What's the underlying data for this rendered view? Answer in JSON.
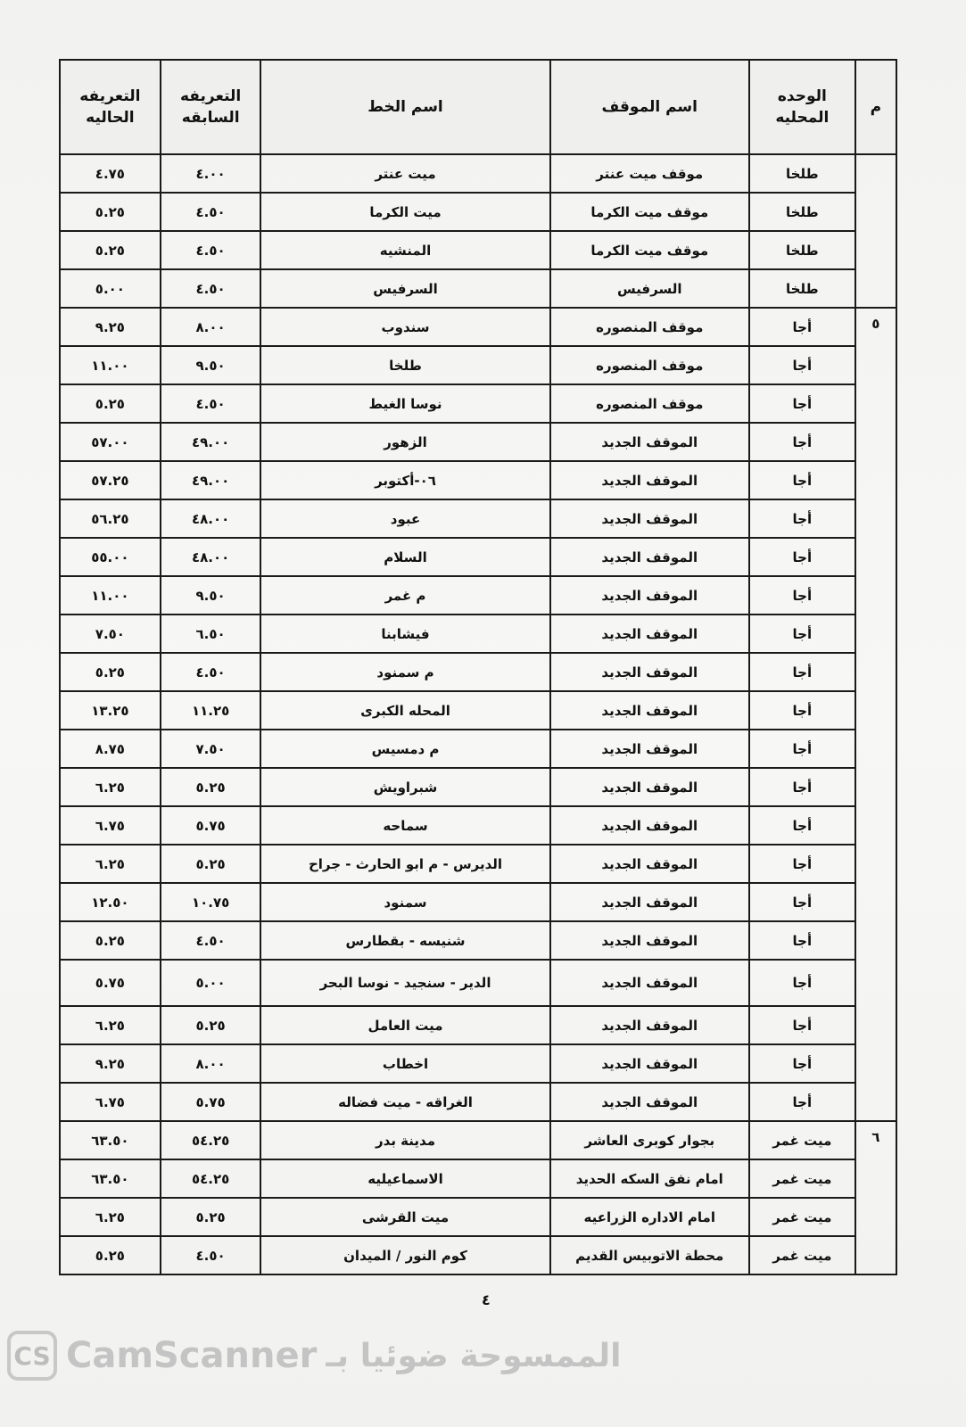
{
  "table": {
    "headers": {
      "m": "م",
      "unit": "الوحده المحليه",
      "stop": "اسم الموقف",
      "line": "اسم الخط",
      "previous_fare": "التعريفه السابقه",
      "current_fare": "التعريفه الحاليه"
    },
    "groups": [
      {
        "m": "",
        "rows": [
          {
            "unit": "طلخا",
            "stop": "موقف ميت عنتر",
            "line": "ميت عنتر",
            "prev": "٤.٠٠",
            "cur": "٤.٧٥"
          },
          {
            "unit": "طلخا",
            "stop": "موقف ميت الكرما",
            "line": "ميت الكرما",
            "prev": "٤.٥٠",
            "cur": "٥.٢٥"
          },
          {
            "unit": "طلخا",
            "stop": "موقف ميت الكرما",
            "line": "المنشيه",
            "prev": "٤.٥٠",
            "cur": "٥.٢٥"
          },
          {
            "unit": "طلخا",
            "stop": "السرفيس",
            "line": "السرفيس",
            "prev": "٤.٥٠",
            "cur": "٥.٠٠"
          }
        ]
      },
      {
        "m": "٥",
        "rows": [
          {
            "unit": "أجا",
            "stop": "موقف المنصوره",
            "line": "سندوب",
            "prev": "٨.٠٠",
            "cur": "٩.٢٥"
          },
          {
            "unit": "أجا",
            "stop": "موقف المنصوره",
            "line": "طلخا",
            "prev": "٩.٥٠",
            "cur": "١١.٠٠"
          },
          {
            "unit": "أجا",
            "stop": "موقف المنصوره",
            "line": "نوسا الغيط",
            "prev": "٤.٥٠",
            "cur": "٥.٢٥"
          },
          {
            "unit": "أجا",
            "stop": "الموقف الجديد",
            "line": "الزهور",
            "prev": "٤٩.٠٠",
            "cur": "٥٧.٠٠"
          },
          {
            "unit": "أجا",
            "stop": "الموقف الجديد",
            "line": "٠٦-أكتوبر",
            "prev": "٤٩.٠٠",
            "cur": "٥٧.٢٥"
          },
          {
            "unit": "أجا",
            "stop": "الموقف الجديد",
            "line": "عبود",
            "prev": "٤٨.٠٠",
            "cur": "٥٦.٢٥"
          },
          {
            "unit": "أجا",
            "stop": "الموقف الجديد",
            "line": "السلام",
            "prev": "٤٨.٠٠",
            "cur": "٥٥.٠٠"
          },
          {
            "unit": "أجا",
            "stop": "الموقف الجديد",
            "line": "م غمر",
            "prev": "٩.٥٠",
            "cur": "١١.٠٠"
          },
          {
            "unit": "أجا",
            "stop": "الموقف الجديد",
            "line": "فيشابنا",
            "prev": "٦.٥٠",
            "cur": "٧.٥٠"
          },
          {
            "unit": "أجا",
            "stop": "الموقف الجديد",
            "line": "م سمنود",
            "prev": "٤.٥٠",
            "cur": "٥.٢٥"
          },
          {
            "unit": "أجا",
            "stop": "الموقف الجديد",
            "line": "المحله الكبرى",
            "prev": "١١.٢٥",
            "cur": "١٣.٢٥"
          },
          {
            "unit": "أجا",
            "stop": "الموقف الجديد",
            "line": "م دمسيس",
            "prev": "٧.٥٠",
            "cur": "٨.٧٥"
          },
          {
            "unit": "أجا",
            "stop": "الموقف الجديد",
            "line": "شبراويش",
            "prev": "٥.٢٥",
            "cur": "٦.٢٥"
          },
          {
            "unit": "أجا",
            "stop": "الموقف الجديد",
            "line": "سماحه",
            "prev": "٥.٧٥",
            "cur": "٦.٧٥"
          },
          {
            "unit": "أجا",
            "stop": "الموقف الجديد",
            "line": "الديرس - م ابو الحارث - جراح",
            "prev": "٥.٢٥",
            "cur": "٦.٢٥"
          },
          {
            "unit": "أجا",
            "stop": "الموقف الجديد",
            "line": "سمنود",
            "prev": "١٠.٧٥",
            "cur": "١٢.٥٠"
          },
          {
            "unit": "أجا",
            "stop": "الموقف الجديد",
            "line": "شنيسه - بقطارس",
            "prev": "٤.٥٠",
            "cur": "٥.٢٥"
          },
          {
            "unit": "أجا",
            "stop": "الموقف الجديد",
            "line": "الدير - سنجيد - نوسا البحر",
            "prev": "٥.٠٠",
            "cur": "٥.٧٥",
            "tall": true
          },
          {
            "unit": "أجا",
            "stop": "الموقف الجديد",
            "line": "ميت العامل",
            "prev": "٥.٢٥",
            "cur": "٦.٢٥"
          },
          {
            "unit": "أجا",
            "stop": "الموقف الجديد",
            "line": "اخطاب",
            "prev": "٨.٠٠",
            "cur": "٩.٢٥"
          },
          {
            "unit": "أجا",
            "stop": "الموقف الجديد",
            "line": "الغراقه - ميت فضاله",
            "prev": "٥.٧٥",
            "cur": "٦.٧٥"
          }
        ]
      },
      {
        "m": "٦",
        "rows": [
          {
            "unit": "ميت غمر",
            "stop": "بجوار كوبرى العاشر",
            "line": "مدينة بدر",
            "prev": "٥٤.٢٥",
            "cur": "٦٣.٥٠"
          },
          {
            "unit": "ميت غمر",
            "stop": "امام نفق السكه الحديد",
            "line": "الاسماعيليه",
            "prev": "٥٤.٢٥",
            "cur": "٦٣.٥٠"
          },
          {
            "unit": "ميت غمر",
            "stop": "امام الاداره الزراعيه",
            "line": "ميت القرشى",
            "prev": "٥.٢٥",
            "cur": "٦.٢٥"
          },
          {
            "unit": "ميت غمر",
            "stop": "محطة الاتوبيس القديم",
            "line": "كوم النور / الميدان",
            "prev": "٤.٥٠",
            "cur": "٥.٢٥"
          }
        ]
      }
    ]
  },
  "page_number": "٤",
  "watermark": {
    "logo": "CS",
    "brand": "CamScanner",
    "arabic": "الممسوحة ضوئيا بـ"
  }
}
